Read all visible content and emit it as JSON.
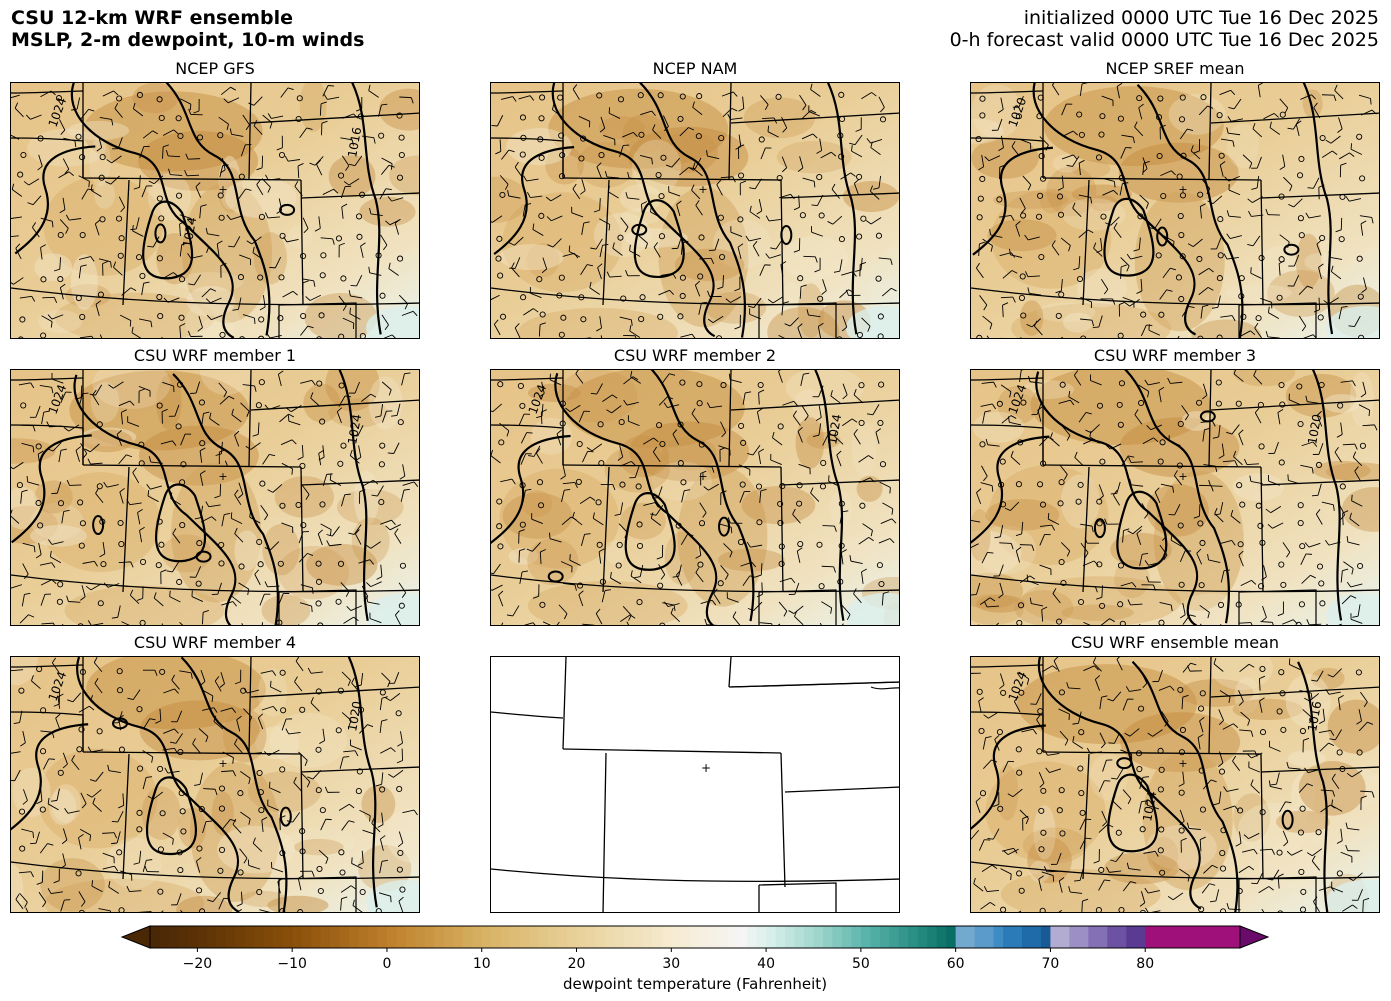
{
  "header": {
    "title_line1": "CSU 12-km WRF ensemble",
    "title_line2": "MSLP, 2-m dewpoint, 10-m winds",
    "init_line": "initialized 0000 UTC Tue 16 Dec 2025",
    "valid_line": "0-h forecast valid 0000 UTC Tue 16 Dec 2025"
  },
  "panels": [
    {
      "title": "NCEP GFS",
      "contour_labels": [
        "1024",
        "1016",
        "1024"
      ],
      "filled": true
    },
    {
      "title": "NCEP NAM",
      "contour_labels": [],
      "filled": true
    },
    {
      "title": "NCEP SREF mean",
      "contour_labels": [
        "1020"
      ],
      "filled": true
    },
    {
      "title": "CSU WRF member 1",
      "contour_labels": [
        "1024",
        "1024"
      ],
      "filled": true
    },
    {
      "title": "CSU WRF member 2",
      "contour_labels": [
        "1024",
        "1024"
      ],
      "filled": true
    },
    {
      "title": "CSU WRF member 3",
      "contour_labels": [
        "1024",
        "1020"
      ],
      "filled": true
    },
    {
      "title": "CSU WRF member 4",
      "contour_labels": [
        "1024",
        "1020"
      ],
      "filled": true
    },
    {
      "title": "",
      "contour_labels": [],
      "filled": false
    },
    {
      "title": "CSU WRF ensemble mean",
      "contour_labels": [
        "1024",
        "1016",
        "1024"
      ],
      "filled": true
    }
  ],
  "colorbar": {
    "label": "dewpoint temperature (Fahrenheit)",
    "ticks": [
      "−20",
      "−10",
      "0",
      "10",
      "20",
      "30",
      "40",
      "50",
      "60",
      "70",
      "80"
    ],
    "range": [
      -25,
      90
    ],
    "extend": "both"
  },
  "colors": {
    "dry": "#5a3005",
    "mid_brown": "#bf812d",
    "tan": "#e8c98a",
    "light": "#f5ecd6",
    "teal": "#35978f",
    "dark_teal": "#01665e",
    "blue": "#2166ac",
    "purple": "#542788",
    "magenta": "#c51b7d"
  }
}
